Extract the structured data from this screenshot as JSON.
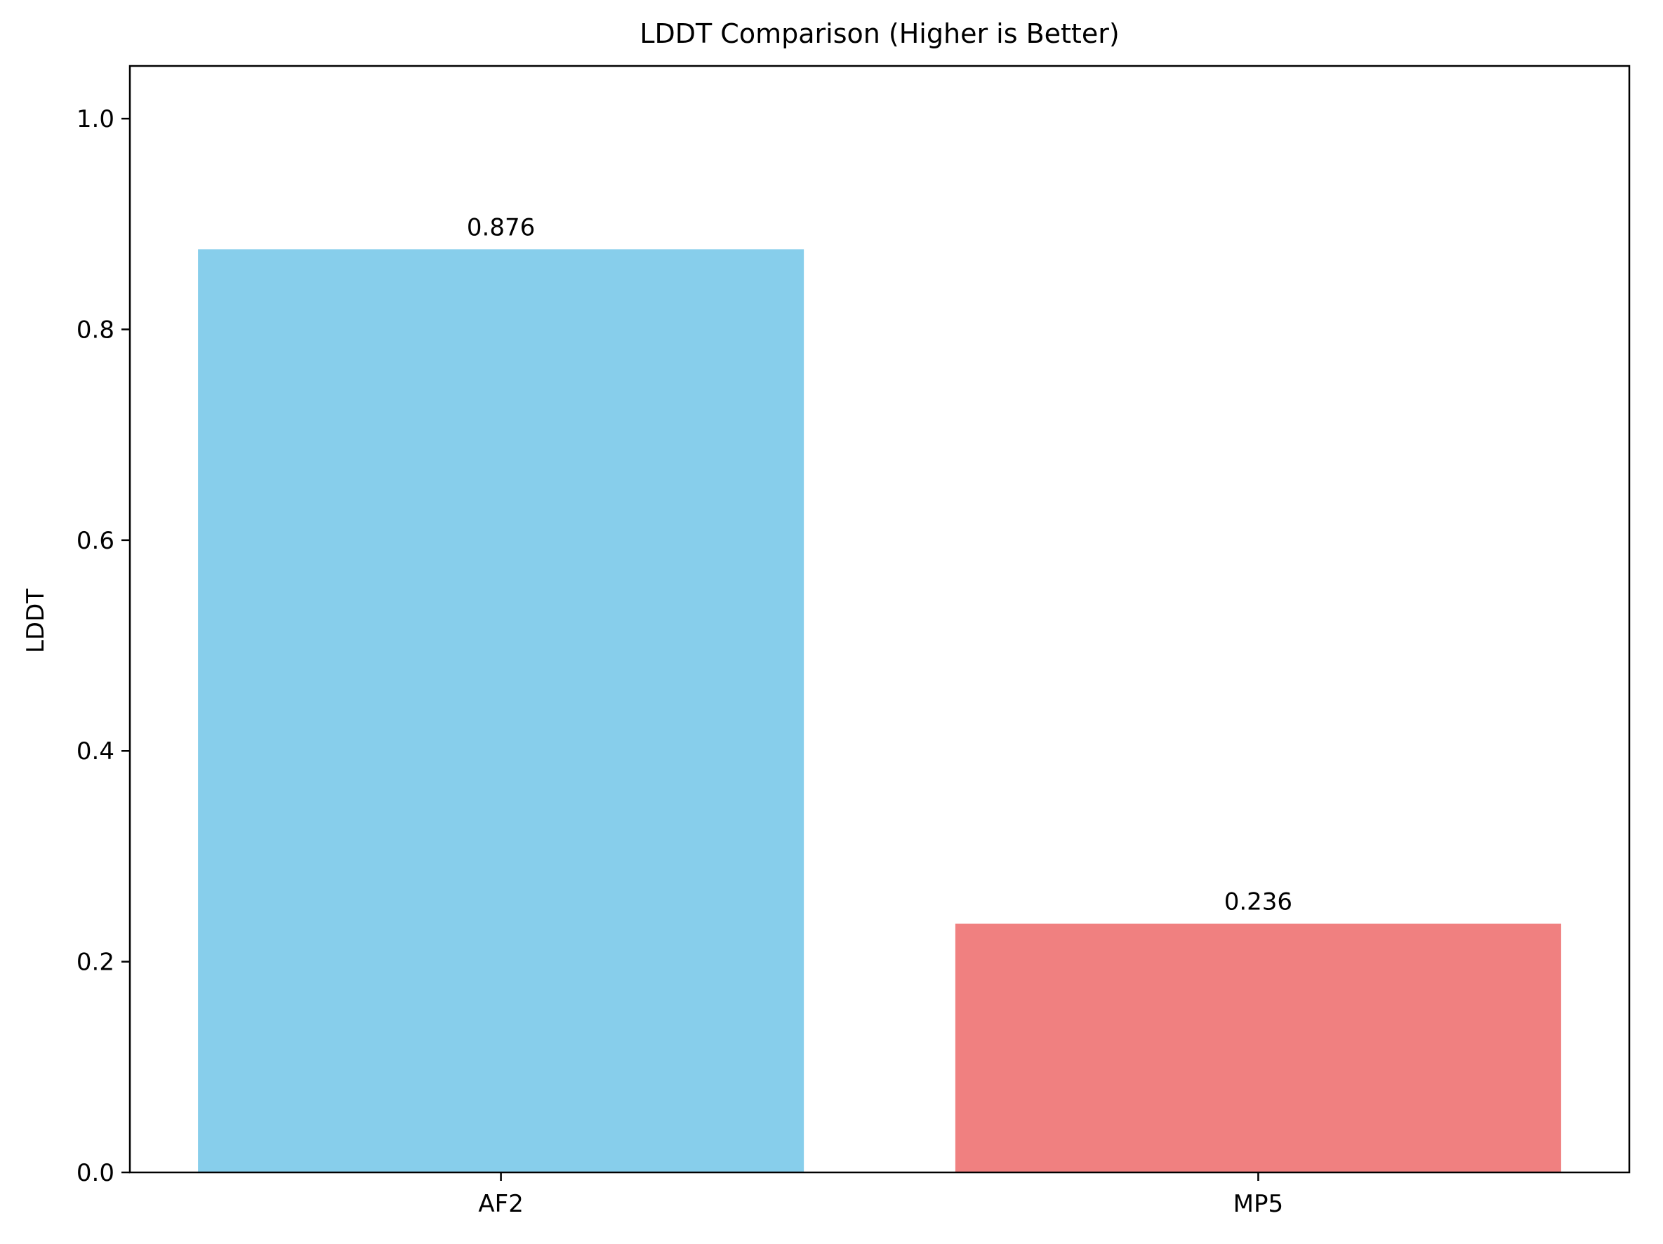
{
  "chart_data": {
    "type": "bar",
    "title": "LDDT Comparison (Higher is Better)",
    "xlabel": "",
    "ylabel": "LDDT",
    "categories": [
      "AF2",
      "MP5"
    ],
    "values": [
      0.876,
      0.236
    ],
    "value_labels": [
      "0.876",
      "0.236"
    ],
    "colors": [
      "#87ceeb",
      "#f08080"
    ],
    "ylim": [
      0,
      1.05
    ],
    "yticks": [
      0.0,
      0.2,
      0.4,
      0.6,
      0.8,
      1.0
    ],
    "ytick_labels": [
      "0.0",
      "0.2",
      "0.4",
      "0.6",
      "0.8",
      "1.0"
    ],
    "grid": false,
    "legend": "none"
  }
}
